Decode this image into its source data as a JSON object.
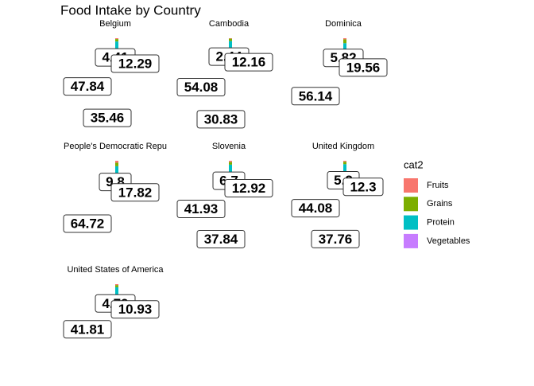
{
  "chart_data": {
    "type": "pie",
    "title": "Food Intake by Country",
    "legend_title": "cat2",
    "categories": [
      "Fruits",
      "Grains",
      "Protein",
      "Vegetables"
    ],
    "colors": [
      "#F8766D",
      "#7CAE00",
      "#00BFC4",
      "#C77CFF"
    ],
    "facets": [
      {
        "name": "Belgium",
        "values": [
          4.41,
          12.29,
          47.84,
          35.46
        ]
      },
      {
        "name": "Cambodia",
        "values": [
          2.44,
          12.16,
          54.08,
          30.83
        ]
      },
      {
        "name": "Dominica",
        "values": [
          5.82,
          19.56,
          56.14,
          null
        ]
      },
      {
        "name": "People's Democratic Repu",
        "values": [
          9.8,
          17.82,
          64.72,
          null
        ]
      },
      {
        "name": "Slovenia",
        "values": [
          6.7,
          12.92,
          41.93,
          37.84
        ]
      },
      {
        "name": "United Kingdom",
        "values": [
          5.2,
          12.3,
          44.08,
          37.76
        ]
      },
      {
        "name": "United States of America",
        "values": [
          4.79,
          10.93,
          41.81,
          null
        ]
      }
    ]
  }
}
